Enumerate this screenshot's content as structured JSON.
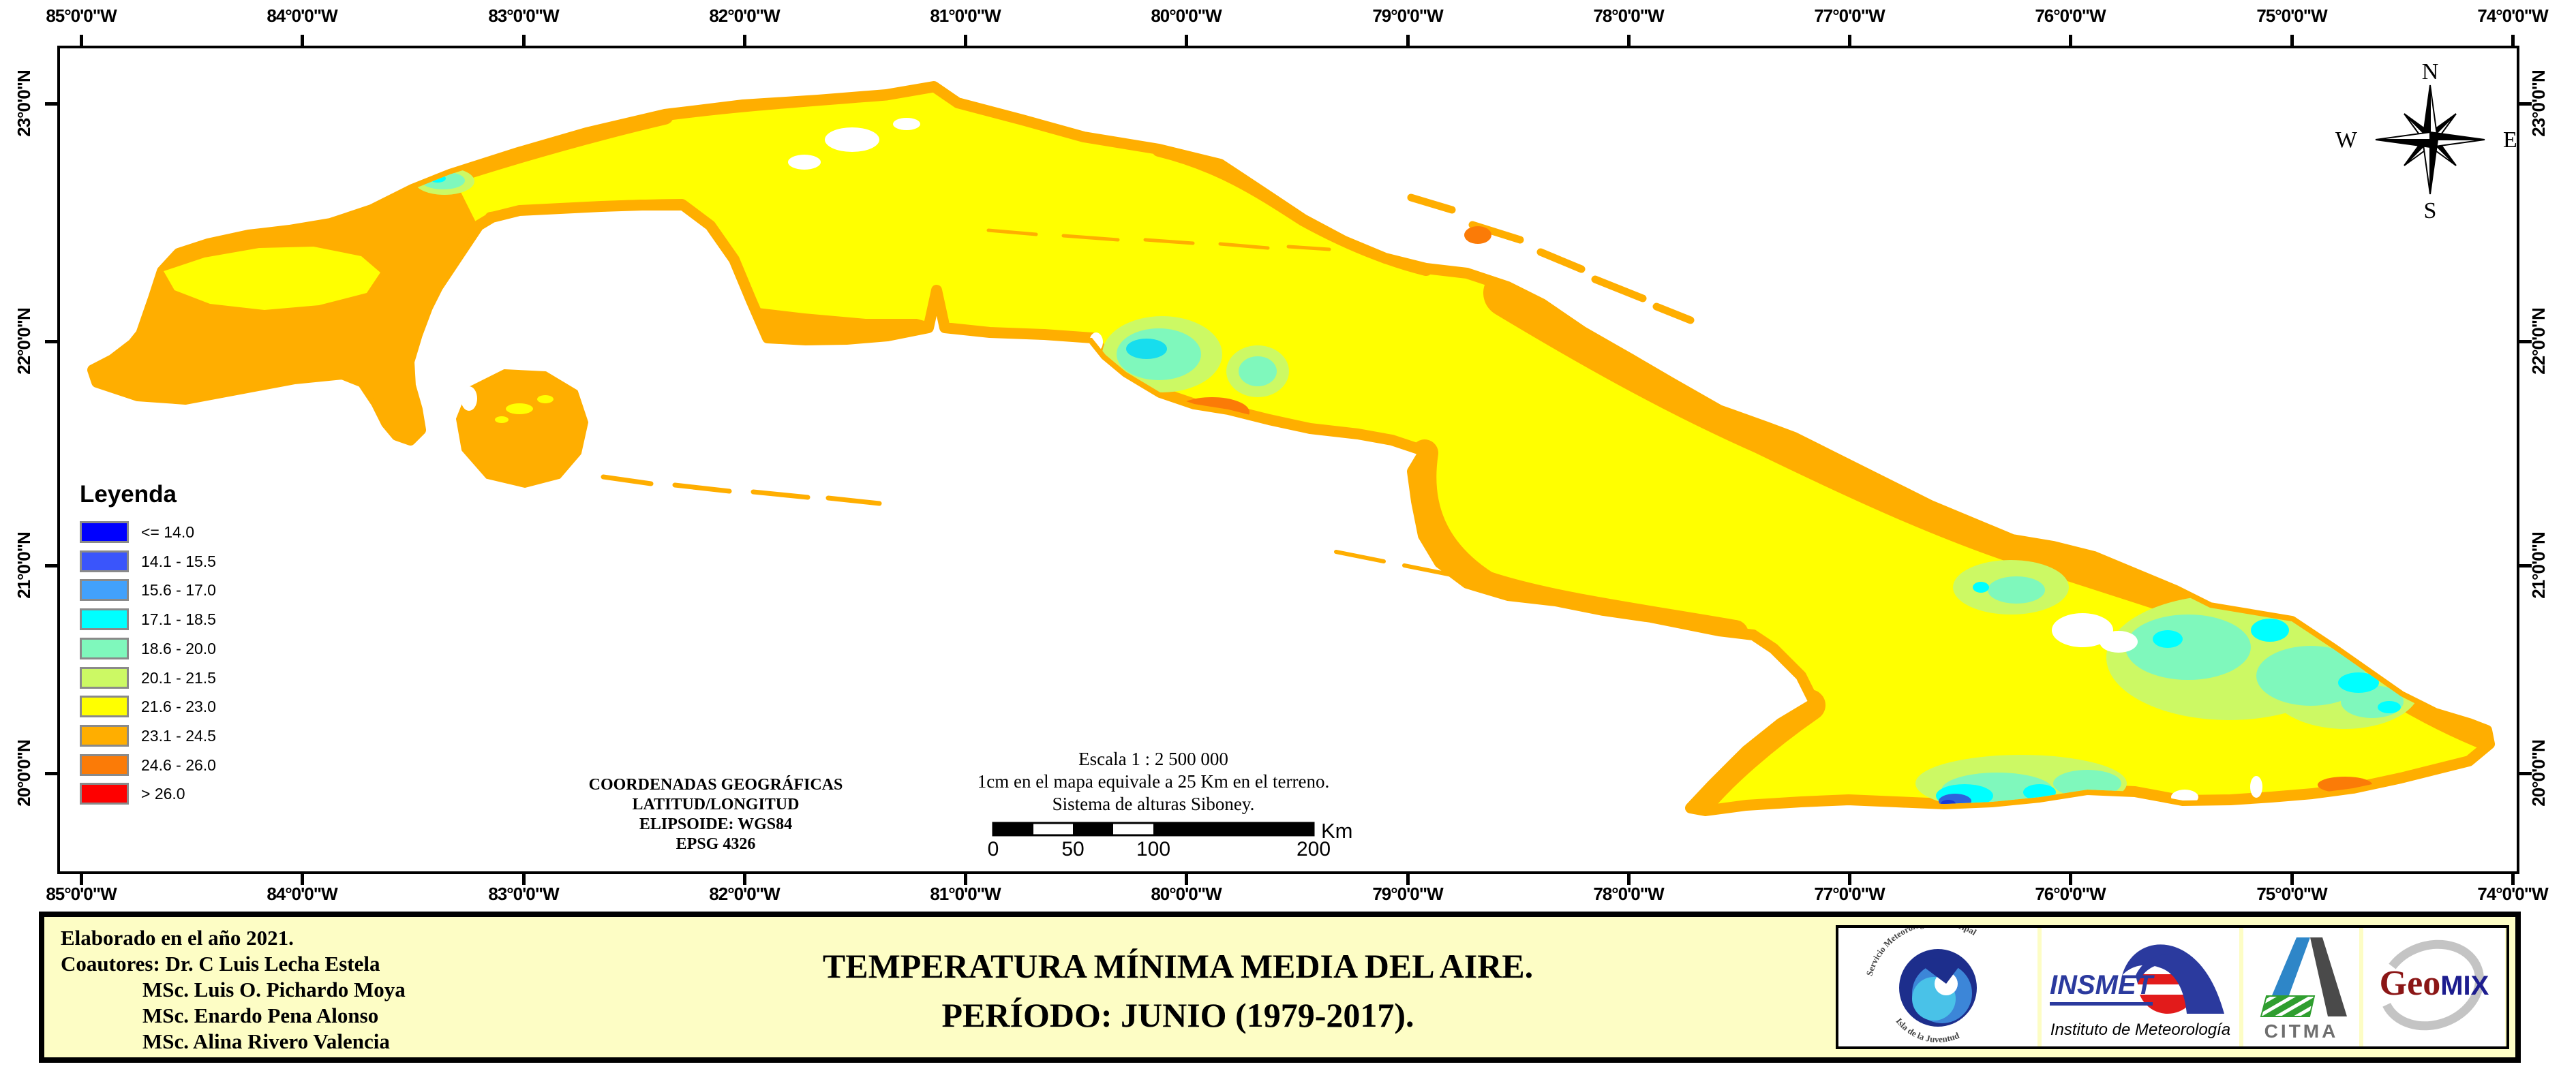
{
  "map": {
    "lon_labels": [
      "85°0'0\"W",
      "84°0'0\"W",
      "83°0'0\"W",
      "82°0'0\"W",
      "81°0'0\"W",
      "80°0'0\"W",
      "79°0'0\"W",
      "78°0'0\"W",
      "77°0'0\"W",
      "76°0'0\"W",
      "75°0'0\"W",
      "74°0'0\"W"
    ],
    "lat_labels": [
      "23°0'0\"N",
      "22°0'0\"N",
      "21°0'0\"N",
      "20°0'0\"N"
    ]
  },
  "legend": {
    "title": "Leyenda",
    "items": [
      {
        "label": "<= 14.0",
        "color": "#0000fe"
      },
      {
        "label": "14.1 - 15.5",
        "color": "#3a55fb"
      },
      {
        "label": "15.6 - 17.0",
        "color": "#42a1fc"
      },
      {
        "label": "17.1 - 18.5",
        "color": "#00ffff"
      },
      {
        "label": "18.6 - 20.0",
        "color": "#7ff8bc"
      },
      {
        "label": "20.1 - 21.5",
        "color": "#ccf964"
      },
      {
        "label": "21.6 - 23.0",
        "color": "#ffff00"
      },
      {
        "label": "23.1 - 24.5",
        "color": "#ffae00"
      },
      {
        "label": "24.6 - 26.0",
        "color": "#fb7b07"
      },
      {
        "label": "> 26.0",
        "color": "#fe0000"
      }
    ]
  },
  "scale": {
    "line1": "Escala 1 : 2 500 000",
    "line2": "1cm en el mapa equivale a 25 Km en el terreno.",
    "line3": "Sistema de alturas Siboney.",
    "ticks": [
      "0",
      "50",
      "100",
      "200"
    ],
    "unit": "Km"
  },
  "projection": {
    "lines": [
      "COORDENADAS GEOGRÁFICAS",
      "LATITUD/LONGITUD",
      "ELIPSOIDE: WGS84",
      "EPSG 4326"
    ]
  },
  "compass": {
    "n": "N",
    "s": "S",
    "e": "E",
    "w": "W"
  },
  "banner": {
    "title_line1": "TEMPERATURA MÍNIMA MEDIA DEL AIRE.",
    "title_line2": "PERÍODO: JUNIO (1979-2017).",
    "credits": [
      {
        "text": "Elaborado en el año 2021.",
        "indent": false
      },
      {
        "text": "Coautores: Dr. C Luis Lecha Estela",
        "indent": false
      },
      {
        "text": "MSc. Luis O. Pichardo Moya",
        "indent": true
      },
      {
        "text": "MSc. Enardo Pena Alonso",
        "indent": true
      },
      {
        "text": "MSc. Alina Rivero Valencia",
        "indent": true
      }
    ]
  },
  "logos": {
    "municipal": {
      "top_text": "Servicio Meteorológico Municipal",
      "bottom_text": "Isla de la Juventud"
    },
    "insmet": {
      "name": "INSMET",
      "subtitle": "Instituto  de  Meteorología"
    },
    "citma": {
      "name": "CITMA"
    },
    "geomix": {
      "geo": "Geo",
      "mix": "MIX"
    }
  },
  "colors": {
    "sea": "#ffffff",
    "land_dominant": "#ffff00",
    "coastal_band": "#ffae00",
    "banner_background": "#fdfdc5"
  }
}
